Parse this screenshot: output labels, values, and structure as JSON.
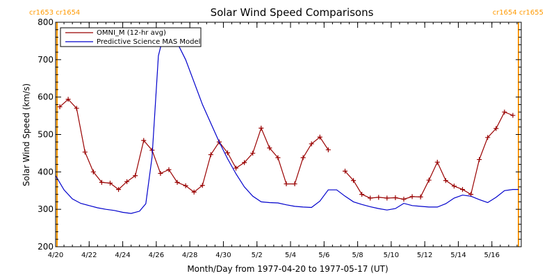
{
  "chart_data": {
    "type": "line",
    "title": "Solar Wind Speed Comparisons",
    "xlabel": "Month/Day from 1977-04-20 to 1977-05-17 (UT)",
    "ylabel": "Solar Wind Speed (km/s)",
    "x_unit": "day-of-month date",
    "xlim": [
      "1977-04-20",
      "1977-05-17 18:00"
    ],
    "ylim": [
      200,
      800
    ],
    "y_ticks": [
      200,
      300,
      400,
      500,
      600,
      700,
      800
    ],
    "x_tick_labels": [
      "4/20",
      "4/22",
      "4/24",
      "4/26",
      "4/28",
      "4/30",
      "5/2",
      "5/4",
      "5/6",
      "5/8",
      "5/10",
      "5/12",
      "5/14",
      "5/16"
    ],
    "x_tick_dates": [
      "1977-04-20",
      "1977-04-22",
      "1977-04-24",
      "1977-04-26",
      "1977-04-28",
      "1977-04-30",
      "1977-05-02",
      "1977-05-04",
      "1977-05-06",
      "1977-05-08",
      "1977-05-10",
      "1977-05-12",
      "1977-05-14",
      "1977-05-16"
    ],
    "carrington_labels": {
      "left": "cr1653 cr1654",
      "right": "cr1654 cr1655",
      "boundary_dates": [
        "1977-04-20 02:00",
        "1977-05-17 14:00"
      ],
      "color": "#ff9900"
    },
    "legend": {
      "placement": "top-left",
      "entries": [
        {
          "label": "OMNI_M (12-hr avg)",
          "color": "#990000"
        },
        {
          "label": "Predictive Science MAS Model",
          "color": "#0000cc"
        }
      ]
    },
    "series": [
      {
        "name": "OMNI_M (12-hr avg)",
        "color": "#990000",
        "marker": "plus",
        "points": [
          [
            "1977-04-20 06:00",
            574
          ],
          [
            "1977-04-20 18:00",
            594
          ],
          [
            "1977-04-21 06:00",
            570
          ],
          [
            "1977-04-21 18:00",
            453
          ],
          [
            "1977-04-22 06:00",
            400
          ],
          [
            "1977-04-22 18:00",
            372
          ],
          [
            "1977-04-23 06:00",
            370
          ],
          [
            "1977-04-23 18:00",
            353
          ],
          [
            "1977-04-24 06:00",
            374
          ],
          [
            "1977-04-24 18:00",
            390
          ],
          [
            "1977-04-25 06:00",
            484
          ],
          [
            "1977-04-25 18:00",
            458
          ],
          [
            "1977-04-26 06:00",
            396
          ],
          [
            "1977-04-26 18:00",
            406
          ],
          [
            "1977-04-27 06:00",
            372
          ],
          [
            "1977-04-27 18:00",
            363
          ],
          [
            "1977-04-28 06:00",
            346
          ],
          [
            "1977-04-28 18:00",
            364
          ],
          [
            "1977-04-29 06:00",
            446
          ],
          [
            "1977-04-29 18:00",
            480
          ],
          [
            "1977-04-30 06:00",
            451
          ],
          [
            "1977-04-30 18:00",
            410
          ],
          [
            "1977-05-01 06:00",
            425
          ],
          [
            "1977-05-01 18:00",
            450
          ],
          [
            "1977-05-02 06:00",
            517
          ],
          [
            "1977-05-02 18:00",
            464
          ],
          [
            "1977-05-03 06:00",
            438
          ],
          [
            "1977-05-03 18:00",
            368
          ],
          [
            "1977-05-04 06:00",
            368
          ],
          [
            "1977-05-04 18:00",
            438
          ],
          [
            "1977-05-05 06:00",
            475
          ],
          [
            "1977-05-05 18:00",
            493
          ],
          [
            "1977-05-06 06:00",
            459
          ],
          null,
          [
            "1977-05-07 06:00",
            402
          ],
          [
            "1977-05-07 18:00",
            377
          ],
          [
            "1977-05-08 06:00",
            340
          ],
          [
            "1977-05-08 18:00",
            330
          ],
          [
            "1977-05-09 06:00",
            332
          ],
          [
            "1977-05-09 18:00",
            330
          ],
          [
            "1977-05-10 06:00",
            331
          ],
          [
            "1977-05-10 18:00",
            327
          ],
          [
            "1977-05-11 06:00",
            334
          ],
          [
            "1977-05-11 18:00",
            333
          ],
          [
            "1977-05-12 06:00",
            378
          ],
          [
            "1977-05-12 18:00",
            426
          ],
          [
            "1977-05-13 06:00",
            377
          ],
          [
            "1977-05-13 18:00",
            362
          ],
          [
            "1977-05-14 06:00",
            353
          ],
          [
            "1977-05-14 18:00",
            340
          ],
          [
            "1977-05-15 06:00",
            433
          ],
          [
            "1977-05-15 18:00",
            492
          ],
          [
            "1977-05-16 06:00",
            516
          ],
          [
            "1977-05-16 18:00",
            560
          ],
          [
            "1977-05-17 06:00",
            551
          ]
        ]
      },
      {
        "name": "Predictive Science MAS Model",
        "color": "#0000cc",
        "marker": "none",
        "points": [
          [
            "1977-04-20 00:00",
            390
          ],
          [
            "1977-04-20 12:00",
            352
          ],
          [
            "1977-04-21 00:00",
            328
          ],
          [
            "1977-04-21 12:00",
            316
          ],
          [
            "1977-04-22 00:00",
            310
          ],
          [
            "1977-04-22 12:00",
            304
          ],
          [
            "1977-04-23 00:00",
            300
          ],
          [
            "1977-04-23 12:00",
            297
          ],
          [
            "1977-04-24 00:00",
            292
          ],
          [
            "1977-04-24 12:00",
            289
          ],
          [
            "1977-04-25 00:00",
            295
          ],
          [
            "1977-04-25 09:00",
            315
          ],
          [
            "1977-04-25 18:00",
            440
          ],
          [
            "1977-04-26 03:00",
            710
          ],
          [
            "1977-04-26 09:00",
            755
          ],
          [
            "1977-04-26 18:00",
            755
          ],
          [
            "1977-04-27 06:00",
            745
          ],
          [
            "1977-04-27 18:00",
            700
          ],
          [
            "1977-04-28 06:00",
            640
          ],
          [
            "1977-04-28 18:00",
            580
          ],
          [
            "1977-04-29 06:00",
            530
          ],
          [
            "1977-04-29 18:00",
            480
          ],
          [
            "1977-04-30 06:00",
            435
          ],
          [
            "1977-04-30 18:00",
            395
          ],
          [
            "1977-05-01 06:00",
            360
          ],
          [
            "1977-05-01 18:00",
            335
          ],
          [
            "1977-05-02 06:00",
            320
          ],
          [
            "1977-05-02 18:00",
            318
          ],
          [
            "1977-05-03 06:00",
            317
          ],
          [
            "1977-05-03 18:00",
            312
          ],
          [
            "1977-05-04 06:00",
            308
          ],
          [
            "1977-05-04 18:00",
            306
          ],
          [
            "1977-05-05 06:00",
            305
          ],
          [
            "1977-05-05 18:00",
            322
          ],
          [
            "1977-05-06 06:00",
            352
          ],
          [
            "1977-05-06 18:00",
            352
          ],
          [
            "1977-05-07 06:00",
            335
          ],
          [
            "1977-05-07 18:00",
            320
          ],
          [
            "1977-05-08 06:00",
            313
          ],
          [
            "1977-05-08 18:00",
            307
          ],
          [
            "1977-05-09 06:00",
            302
          ],
          [
            "1977-05-09 18:00",
            298
          ],
          [
            "1977-05-10 06:00",
            302
          ],
          [
            "1977-05-10 18:00",
            316
          ],
          [
            "1977-05-11 06:00",
            310
          ],
          [
            "1977-05-11 18:00",
            308
          ],
          [
            "1977-05-12 06:00",
            306
          ],
          [
            "1977-05-12 18:00",
            306
          ],
          [
            "1977-05-13 06:00",
            315
          ],
          [
            "1977-05-13 18:00",
            330
          ],
          [
            "1977-05-14 06:00",
            338
          ],
          [
            "1977-05-14 18:00",
            335
          ],
          [
            "1977-05-15 06:00",
            326
          ],
          [
            "1977-05-15 18:00",
            318
          ],
          [
            "1977-05-16 06:00",
            332
          ],
          [
            "1977-05-16 18:00",
            350
          ],
          [
            "1977-05-17 06:00",
            353
          ],
          [
            "1977-05-17 14:00",
            353
          ]
        ]
      }
    ]
  }
}
